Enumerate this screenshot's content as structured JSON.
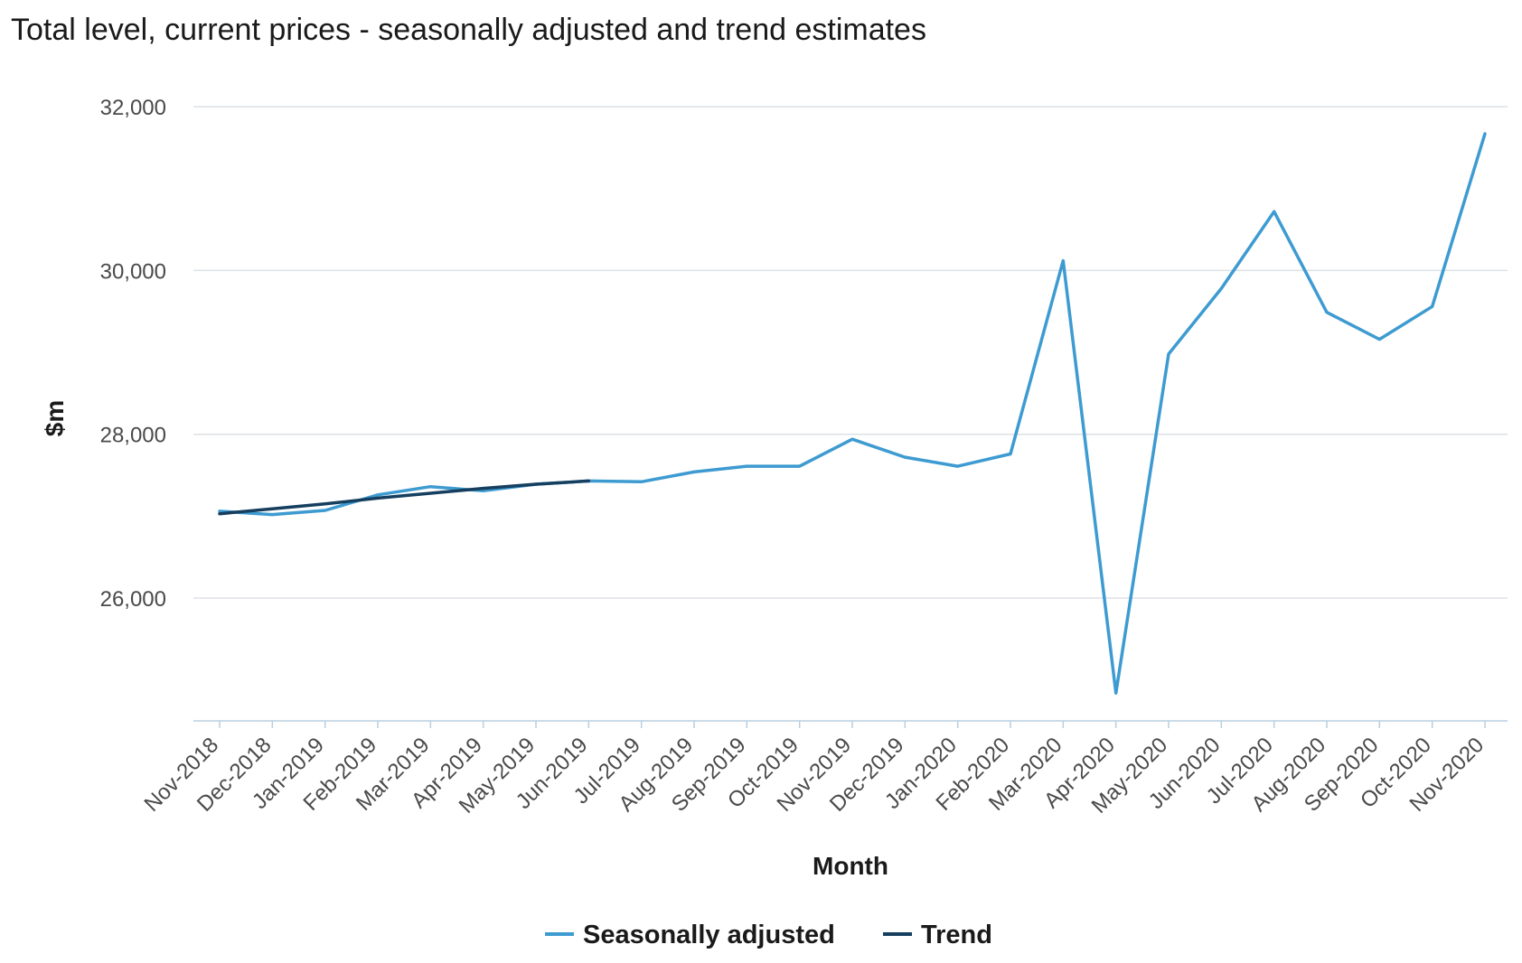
{
  "chart_data": {
    "type": "line",
    "title": "Total level, current prices - seasonally adjusted and trend estimates",
    "xlabel": "Month",
    "ylabel": "$m",
    "ylim": [
      24500,
      32200
    ],
    "yticks": [
      26000,
      28000,
      30000,
      32000
    ],
    "ytick_labels": [
      "26,000",
      "28,000",
      "30,000",
      "32,000"
    ],
    "grid": "horizontal",
    "legend_position": "bottom-center",
    "categories": [
      "Nov-2018",
      "Dec-2018",
      "Jan-2019",
      "Feb-2019",
      "Mar-2019",
      "Apr-2019",
      "May-2019",
      "Jun-2019",
      "Jul-2019",
      "Aug-2019",
      "Sep-2019",
      "Oct-2019",
      "Nov-2019",
      "Dec-2019",
      "Jan-2020",
      "Feb-2020",
      "Mar-2020",
      "Apr-2020",
      "May-2020",
      "Jun-2020",
      "Jul-2020",
      "Aug-2020",
      "Sep-2020",
      "Oct-2020",
      "Nov-2020"
    ],
    "series": [
      {
        "name": "Seasonally adjusted",
        "color": "#3d9bd1",
        "values": [
          27060,
          27020,
          27070,
          27260,
          27360,
          27310,
          27390,
          27430,
          27420,
          27540,
          27610,
          27610,
          27940,
          27720,
          27610,
          27760,
          30120,
          24840,
          28980,
          29780,
          30720,
          29490,
          29160,
          29560,
          31670
        ]
      },
      {
        "name": "Trend",
        "color": "#163f5f",
        "values": [
          27030,
          27090,
          27150,
          27220,
          27280,
          27340,
          27390,
          27430,
          null,
          null,
          null,
          null,
          null,
          null,
          null,
          null,
          null,
          null,
          null,
          null,
          null,
          null,
          null,
          null,
          null
        ]
      }
    ]
  }
}
